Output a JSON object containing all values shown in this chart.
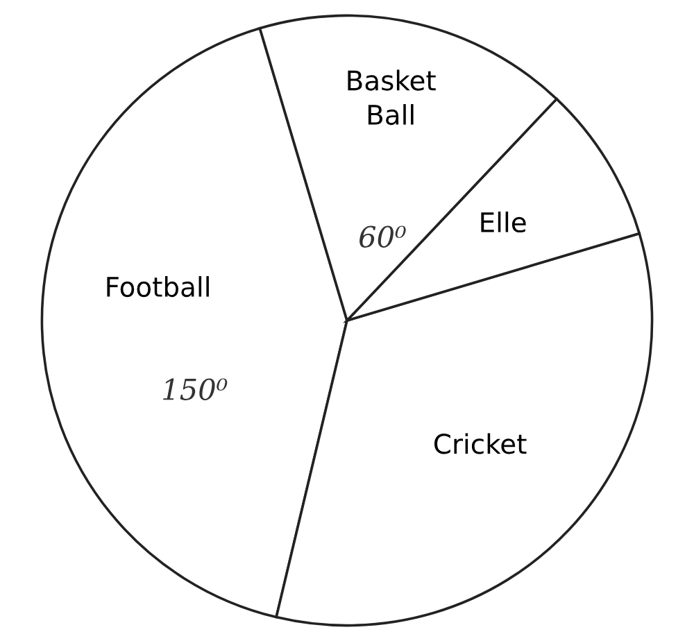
{
  "chart_data": {
    "type": "pie",
    "categories": [
      "Football",
      "Cricket",
      "Elle",
      "Basket\nBall"
    ],
    "values": [
      150,
      120,
      30,
      60
    ],
    "colors": [
      "#ffffff",
      "#ffffff",
      "#ffffff",
      "#ffffff"
    ],
    "value_labels": [
      "150⁰",
      null,
      null,
      "60⁰"
    ]
  }
}
